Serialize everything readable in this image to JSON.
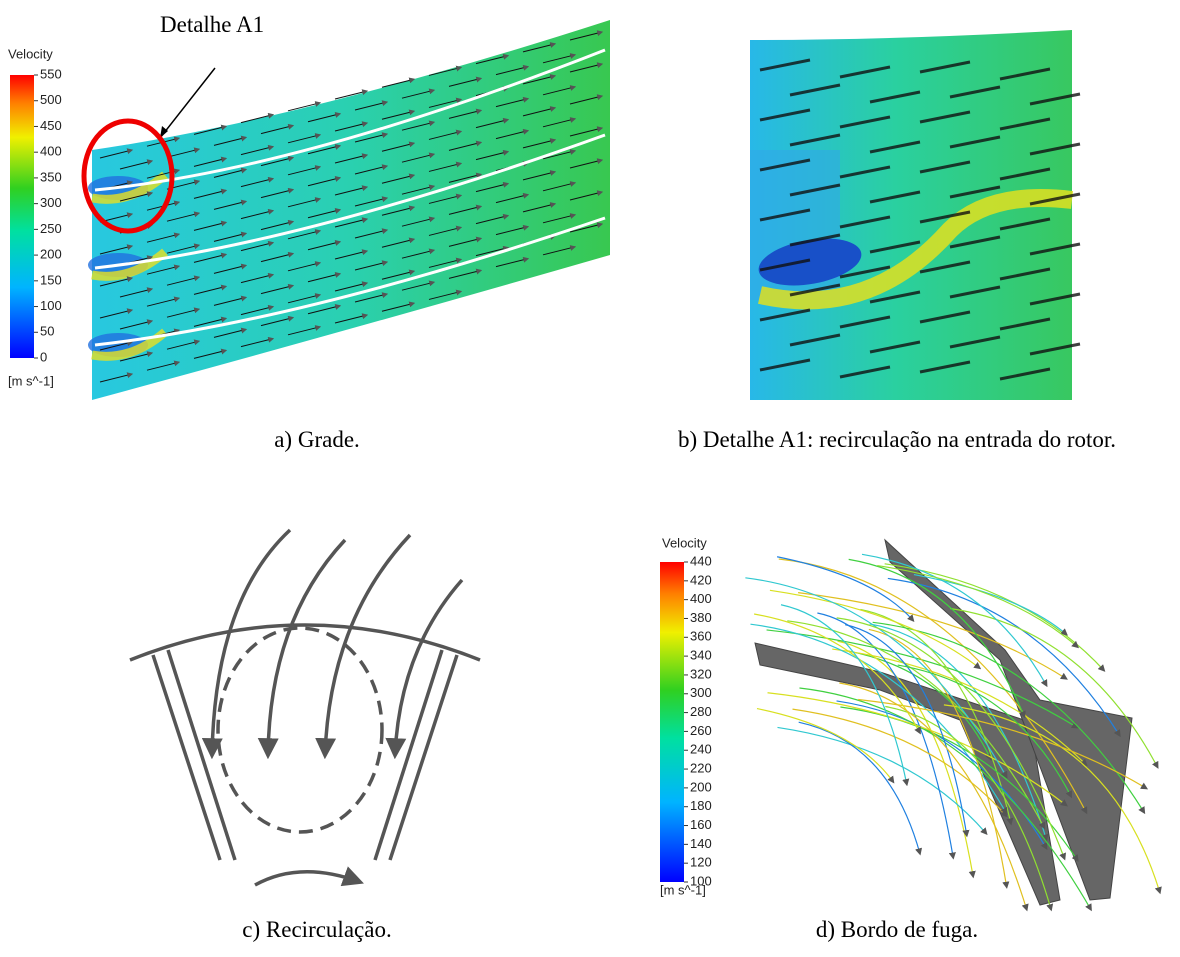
{
  "panel_a": {
    "callout": "Detalhe A1",
    "colorbar": {
      "title": "Velocity",
      "ticks": [
        0,
        50,
        100,
        150,
        200,
        250,
        300,
        350,
        400,
        450,
        500,
        550
      ],
      "unit": "[m s^-1]"
    },
    "caption": "a) Grade."
  },
  "panel_b": {
    "caption": "b) Detalhe A1: recirculação na entrada do rotor."
  },
  "panel_c": {
    "caption": "c) Recirculação."
  },
  "panel_d": {
    "colorbar": {
      "title": "Velocity",
      "ticks": [
        100,
        120,
        140,
        160,
        180,
        200,
        220,
        240,
        260,
        280,
        300,
        320,
        340,
        360,
        380,
        400,
        420,
        440
      ],
      "unit": "[m s^-1]"
    },
    "caption": "d) Bordo de fuga."
  }
}
